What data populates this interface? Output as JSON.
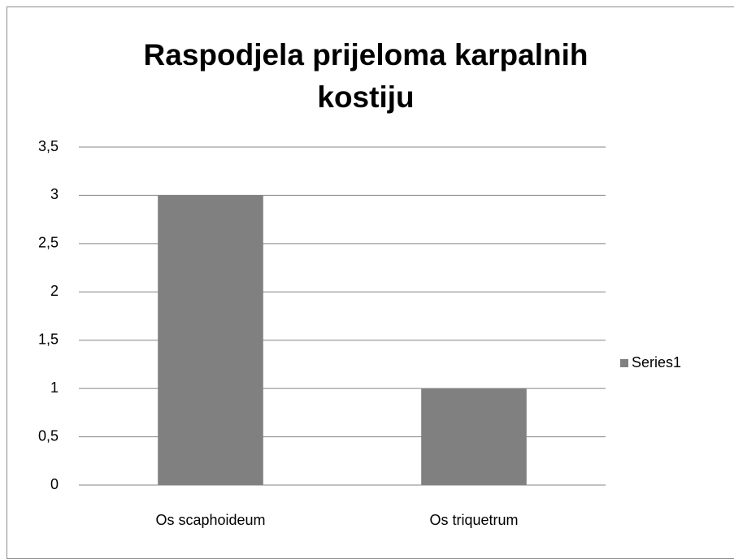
{
  "chart_data": {
    "type": "bar",
    "title": "Raspodjela prijeloma karpalnih kostiju",
    "categories": [
      "Os scaphoideum",
      "Os triquetrum"
    ],
    "series": [
      {
        "name": "Series1",
        "color": "#808080",
        "values": [
          3,
          1
        ]
      }
    ],
    "ylim": [
      0,
      3.5
    ],
    "yticks": [
      0,
      {
        "value": 0.5,
        "label": "0,5"
      },
      1,
      {
        "value": 1.5,
        "label": "1,5"
      },
      2,
      {
        "value": 2.5,
        "label": "2,5"
      },
      3,
      {
        "value": 3.5,
        "label": "3,5"
      }
    ],
    "grid": true,
    "legend": "right"
  }
}
